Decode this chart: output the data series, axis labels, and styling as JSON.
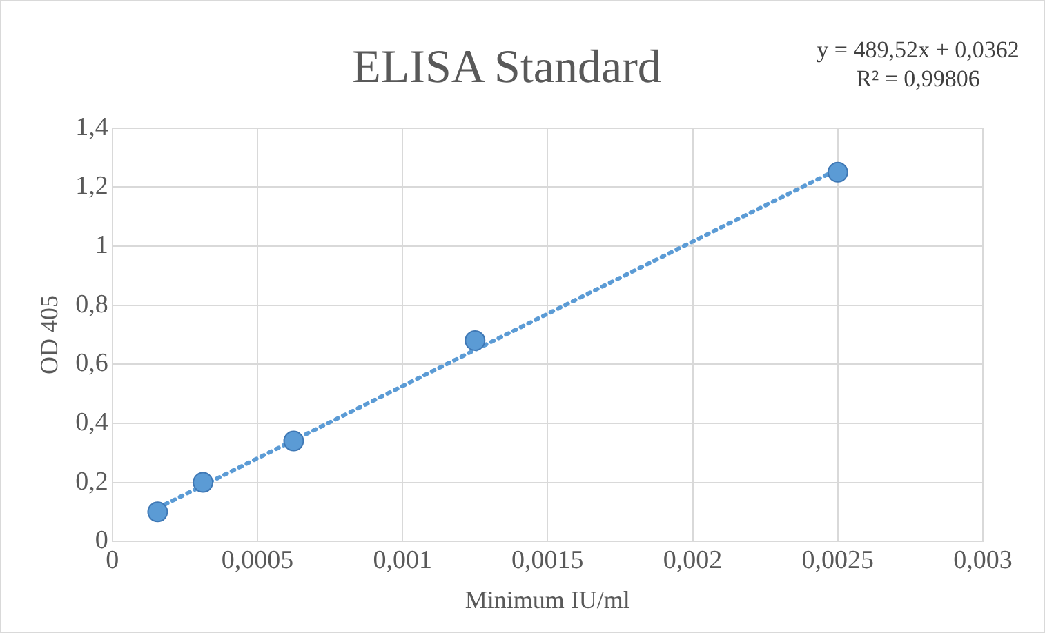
{
  "chart_data": {
    "type": "scatter",
    "title": "ELISA Standard",
    "xlabel": "Minimum IU/ml",
    "ylabel": "OD 405",
    "x": [
      0.00015625,
      0.0003125,
      0.000625,
      0.00125,
      0.0025
    ],
    "series": [
      {
        "type": "scatter",
        "color": "#5b9bd5",
        "values": [
          0.1,
          0.2,
          0.34,
          0.68,
          1.25
        ],
        "marker": "circle"
      },
      {
        "type": "line",
        "color": "#5b9bd5",
        "x": [
          0.00015625,
          0.0025
        ],
        "values": [
          0.113,
          1.26
        ],
        "marker": "none",
        "line_style": "dotted"
      }
    ],
    "xlim": [
      0,
      0.003
    ],
    "ylim": [
      0,
      1.4
    ],
    "xticks": [
      0,
      {
        "value": 0.0005,
        "label": "0,0005"
      },
      {
        "value": 0.001,
        "label": "0,001"
      },
      {
        "value": 0.0015,
        "label": "0,0015"
      },
      {
        "value": 0.002,
        "label": "0,002"
      },
      {
        "value": 0.0025,
        "label": "0,0025"
      },
      {
        "value": 0.003,
        "label": "0,003"
      }
    ],
    "yticks": [
      0,
      {
        "value": 0.2,
        "label": "0,2"
      },
      {
        "value": 0.4,
        "label": "0,4"
      },
      {
        "value": 0.6,
        "label": "0,6"
      },
      {
        "value": 0.8,
        "label": "0,8"
      },
      1,
      {
        "value": 1.2,
        "label": "1,2"
      },
      {
        "value": 1.4,
        "label": "1,4"
      }
    ],
    "grid": true,
    "legend": false,
    "annotations": [
      "y = 489,52x + 0,0362",
      "R² = 0,99806"
    ]
  }
}
